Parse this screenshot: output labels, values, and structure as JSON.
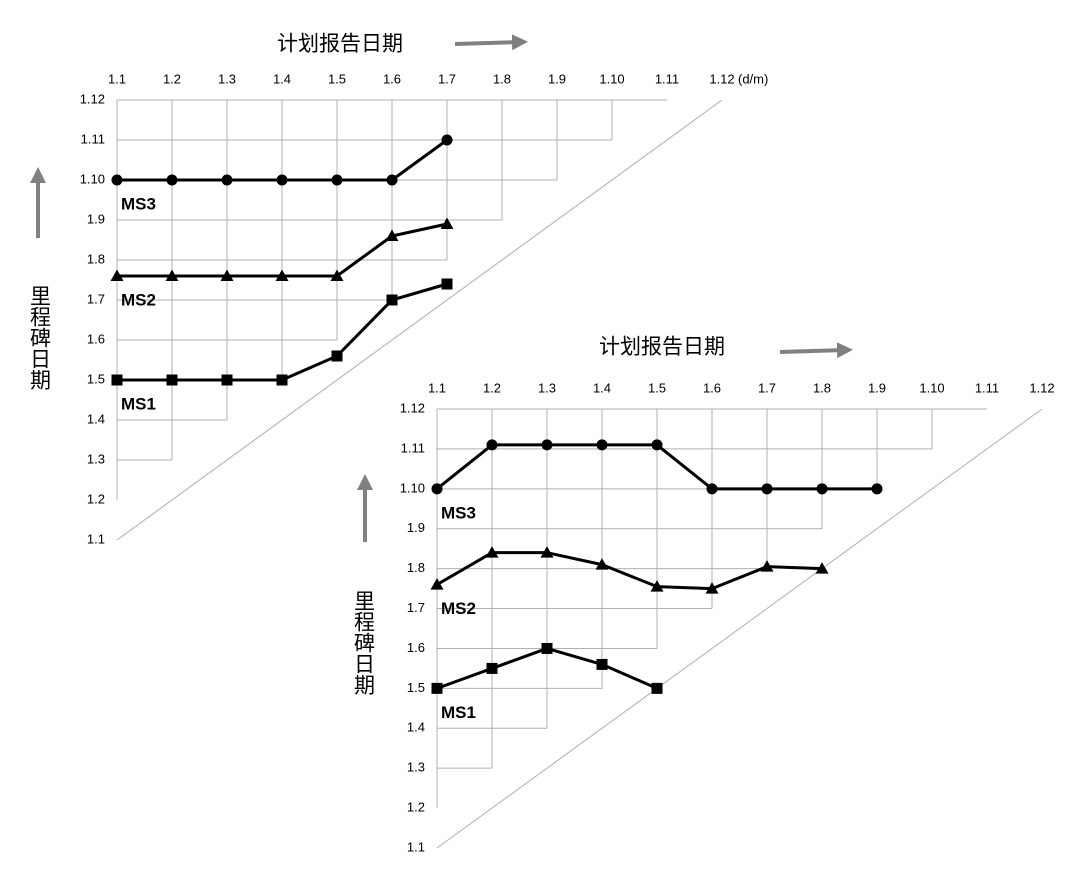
{
  "chart_data": [
    {
      "type": "line",
      "x_label": "计划报告日期",
      "y_label": "里程碑日期",
      "x_unit": "(d/m)",
      "categories": [
        "1.1",
        "1.2",
        "1.3",
        "1.4",
        "1.5",
        "1.6",
        "1.7",
        "1.8",
        "1.9",
        "1.10",
        "1.11",
        "1.12"
      ],
      "ylim": [
        1,
        12
      ],
      "yticks": [
        {
          "value": 1,
          "label": "1.1"
        },
        {
          "value": 2,
          "label": "1.2"
        },
        {
          "value": 3,
          "label": "1.3"
        },
        {
          "value": 4,
          "label": "1.4"
        },
        {
          "value": 5,
          "label": "1.5"
        },
        {
          "value": 6,
          "label": "1.6"
        },
        {
          "value": 7,
          "label": "1.7"
        },
        {
          "value": 8,
          "label": "1.8"
        },
        {
          "value": 9,
          "label": "1.9"
        },
        {
          "value": 10,
          "label": "1.10"
        },
        {
          "value": 11,
          "label": "1.11"
        },
        {
          "value": 12,
          "label": "1.12"
        }
      ],
      "grid": true,
      "series": [
        {
          "name": "MS3",
          "color": "#000000",
          "marker": "circle",
          "values": [
            10,
            10,
            10,
            10,
            10,
            10,
            11,
            null,
            null,
            null,
            null,
            null
          ]
        },
        {
          "name": "MS2",
          "color": "#000000",
          "marker": "triangle",
          "values": [
            7.6,
            7.6,
            7.6,
            7.6,
            7.6,
            8.6,
            8.9,
            null,
            null,
            null,
            null,
            null
          ]
        },
        {
          "name": "MS1",
          "color": "#000000",
          "marker": "square",
          "values": [
            5,
            5,
            5,
            5,
            5.6,
            7,
            7.4,
            null,
            null,
            null,
            null,
            null
          ]
        }
      ]
    },
    {
      "type": "line",
      "x_label": "计划报告日期",
      "y_label": "里程碑日期",
      "categories": [
        "1.1",
        "1.2",
        "1.3",
        "1.4",
        "1.5",
        "1.6",
        "1.7",
        "1.8",
        "1.9",
        "1.10",
        "1.11",
        "1.12"
      ],
      "ylim": [
        1,
        12
      ],
      "yticks": [
        {
          "value": 1,
          "label": "1.1"
        },
        {
          "value": 2,
          "label": "1.2"
        },
        {
          "value": 3,
          "label": "1.3"
        },
        {
          "value": 4,
          "label": "1.4"
        },
        {
          "value": 5,
          "label": "1.5"
        },
        {
          "value": 6,
          "label": "1.6"
        },
        {
          "value": 7,
          "label": "1.7"
        },
        {
          "value": 8,
          "label": "1.8"
        },
        {
          "value": 9,
          "label": "1.9"
        },
        {
          "value": 10,
          "label": "1.10"
        },
        {
          "value": 11,
          "label": "1.11"
        },
        {
          "value": 12,
          "label": "1.12"
        }
      ],
      "grid": true,
      "series": [
        {
          "name": "MS3",
          "color": "#000000",
          "marker": "circle",
          "values": [
            10,
            11.1,
            11.1,
            11.1,
            11.1,
            10,
            10,
            10,
            10,
            null,
            null,
            null
          ]
        },
        {
          "name": "MS2",
          "color": "#000000",
          "marker": "triangle",
          "values": [
            7.6,
            8.4,
            8.4,
            8.1,
            7.55,
            7.5,
            8.05,
            8,
            null,
            null,
            null,
            null
          ]
        },
        {
          "name": "MS1",
          "color": "#000000",
          "marker": "square",
          "values": [
            5,
            5.5,
            6,
            5.6,
            5,
            null,
            null,
            null,
            null,
            null,
            null,
            null
          ]
        }
      ]
    }
  ]
}
